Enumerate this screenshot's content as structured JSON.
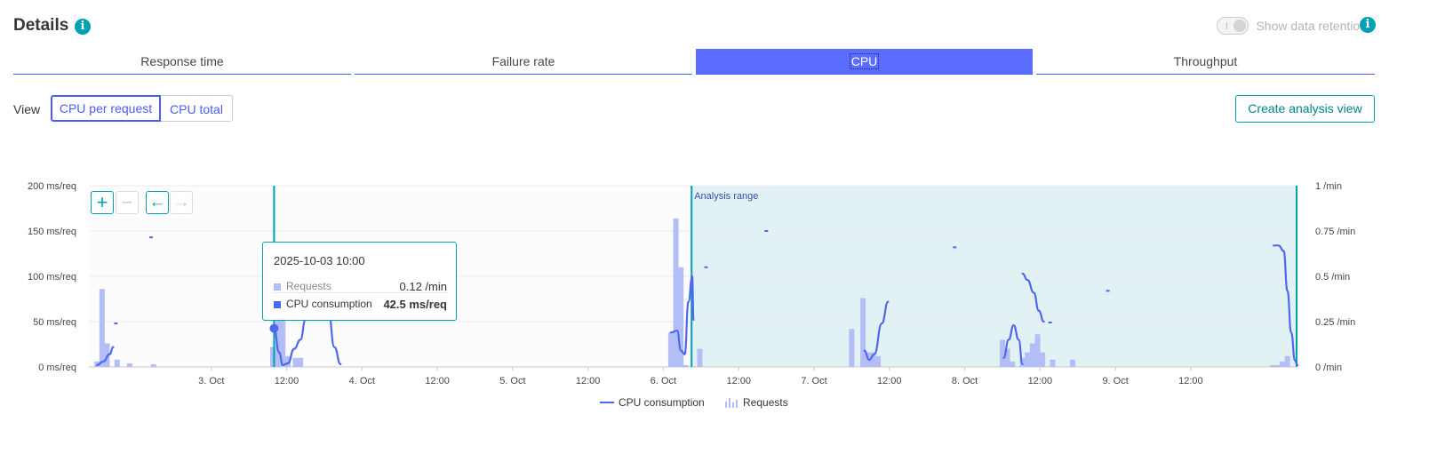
{
  "header": {
    "title": "Details",
    "toggle_label": "Show data retention"
  },
  "tabs": [
    {
      "label": "Response time",
      "active": false
    },
    {
      "label": "Failure rate",
      "active": false
    },
    {
      "label": "CPU",
      "active": true
    },
    {
      "label": "Throughput",
      "active": false
    }
  ],
  "view": {
    "label": "View",
    "options": [
      "CPU per request",
      "CPU total"
    ],
    "selected": "CPU per request"
  },
  "create_button": "Create analysis view",
  "colors": {
    "accent": "#4a5cff",
    "teal": "#00a1b2",
    "cpu_line": "#4d67f0",
    "requests_bar": "#b3bef7",
    "analysis_bg": "#e2f2f4"
  },
  "icons": {
    "info": "info-icon",
    "zoom_in": "plus-icon",
    "zoom_out": "minus-icon",
    "back": "arrow-left-icon",
    "forward": "arrow-right-icon"
  },
  "tooltip": {
    "date": "2025-10-03 10:00",
    "rows": [
      {
        "label": "Requests",
        "value": "0.12 /min"
      },
      {
        "label": "CPU consumption",
        "value": "42.5 ms/req"
      }
    ]
  },
  "chart_data": {
    "type": "bar",
    "annotation": "Analysis range",
    "y_left": {
      "ticks": [
        "200 ms/req",
        "150 ms/req",
        "100 ms/req",
        "50 ms/req",
        "0 ms/req"
      ],
      "range": [
        0,
        200
      ]
    },
    "y_right": {
      "ticks": [
        "1 /min",
        "0.75 /min",
        "0.5 /min",
        "0.25 /min",
        "0 /min"
      ],
      "range": [
        0,
        1
      ]
    },
    "x_ticks": [
      "3. Oct",
      "12:00",
      "4. Oct",
      "12:00",
      "5. Oct",
      "12:00",
      "6. Oct",
      "12:00",
      "7. Oct",
      "12:00",
      "8. Oct",
      "12:00",
      "9. Oct",
      "12:00"
    ],
    "x_range_hours": [
      -19.5,
      173
    ],
    "tick_hours": [
      0,
      12,
      24,
      36,
      48,
      60,
      72,
      84,
      96,
      108,
      120,
      132,
      144,
      156
    ],
    "analysis_range_hours": [
      76.5,
      173
    ],
    "cursor_hours": 10,
    "series": [
      {
        "name": "Requests",
        "unit": "/min",
        "points": [
          [
            -18.2,
            0.03
          ],
          [
            -17.4,
            0.43
          ],
          [
            -16.6,
            0.13
          ],
          [
            -15.0,
            0.04
          ],
          [
            -13.0,
            0.02
          ],
          [
            -9.2,
            0.015
          ],
          [
            9.8,
            0.11
          ],
          [
            10.6,
            0.59
          ],
          [
            11.4,
            0.26
          ],
          [
            12.2,
            0.06
          ],
          [
            13.4,
            0.05
          ],
          [
            14.2,
            0.05
          ],
          [
            73.2,
            0.19
          ],
          [
            74.0,
            0.82
          ],
          [
            74.8,
            0.55
          ],
          [
            75.6,
            0.01
          ],
          [
            77.8,
            0.1
          ],
          [
            102.0,
            0.21
          ],
          [
            103.8,
            0.38
          ],
          [
            104.6,
            0.08
          ],
          [
            105.4,
            0.08
          ],
          [
            106.2,
            0.06
          ],
          [
            126.0,
            0.15
          ],
          [
            126.8,
            0.1
          ],
          [
            127.6,
            0.03
          ],
          [
            129.2,
            0.05
          ],
          [
            130.0,
            0.08
          ],
          [
            130.8,
            0.13
          ],
          [
            131.6,
            0.18
          ],
          [
            132.4,
            0.08
          ],
          [
            134.0,
            0.04
          ],
          [
            137.2,
            0.04
          ],
          [
            169.0,
            0.01
          ],
          [
            169.8,
            0.01
          ],
          [
            170.6,
            0.03
          ],
          [
            171.4,
            0.06
          ]
        ]
      },
      {
        "name": "CPU consumption",
        "unit": "ms/req",
        "segments": [
          [
            [
              -18.2,
              2
            ],
            [
              -17.2,
              6
            ],
            [
              -16.2,
              14
            ],
            [
              -15.6,
              22
            ]
          ],
          [
            [
              10,
              42.5
            ],
            [
              10.8,
              16
            ],
            [
              11.4,
              2
            ],
            [
              12.2,
              4
            ],
            [
              13.2,
              20
            ],
            [
              14.2,
              30
            ],
            [
              15.0,
              52
            ],
            [
              15.8,
              70
            ]
          ],
          [
            [
              18.6,
              66
            ],
            [
              19.6,
              22
            ],
            [
              20.6,
              3
            ]
          ],
          [
            [
              73.2,
              38
            ],
            [
              74.2,
              40
            ],
            [
              74.8,
              18
            ],
            [
              75.4,
              14
            ],
            [
              76.0,
              72
            ],
            [
              76.6,
              100
            ],
            [
              76.8,
              52
            ]
          ],
          [
            [
              104.0,
              18
            ],
            [
              104.8,
              8
            ],
            [
              105.6,
              14
            ],
            [
              106.8,
              48
            ],
            [
              107.8,
              72
            ]
          ],
          [
            [
              126.2,
              10
            ],
            [
              127.0,
              30
            ],
            [
              127.8,
              46
            ],
            [
              128.6,
              30
            ],
            [
              129.2,
              3
            ]
          ],
          [
            [
              129.2,
              103
            ],
            [
              130.0,
              96
            ],
            [
              131.0,
              82
            ],
            [
              131.8,
              62
            ],
            [
              132.6,
              50
            ]
          ],
          [
            [
              169.2,
              134
            ],
            [
              170.0,
              134
            ],
            [
              170.8,
              128
            ],
            [
              171.4,
              84
            ],
            [
              172.0,
              38
            ],
            [
              172.6,
              7
            ],
            [
              173,
              2
            ]
          ]
        ],
        "dashes": [
          [
            -15.2,
            48
          ],
          [
            -9.6,
            143
          ],
          [
            78.8,
            110
          ],
          [
            88.4,
            150
          ],
          [
            118.4,
            132
          ],
          [
            133.6,
            49
          ],
          [
            142.8,
            84
          ]
        ]
      }
    ]
  },
  "legend": [
    {
      "label": "CPU consumption"
    },
    {
      "label": "Requests"
    }
  ]
}
